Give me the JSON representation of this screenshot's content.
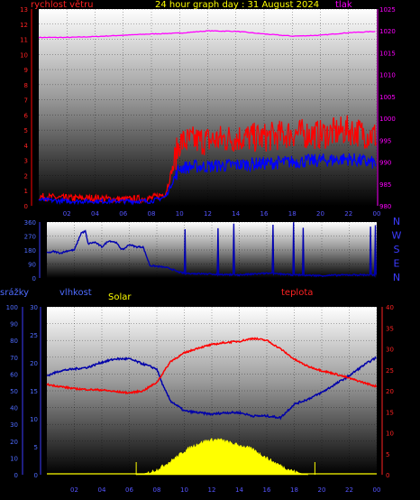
{
  "colors": {
    "background": "#000000",
    "wind_speed": "#ff0000",
    "wind_gust": "#ff0000",
    "wind_avg": "#0000ff",
    "pressure": "#ff00ff",
    "direction": "#00008b",
    "humidity": "#0000aa",
    "temperature": "#ff0000",
    "solar": "#ffff00",
    "title": "#ffff00",
    "rain_axis": "#3c3cff",
    "hum_axis": "#3c3cff",
    "dir_letters": "#3c3cff",
    "temp_axis": "#ff3333"
  },
  "chart_data": [
    {
      "type": "line",
      "title": "24 hour graph day : 31 August 2024",
      "left_axis_label": "rychlost větru",
      "right_axis_label": "tlak",
      "x_ticks": [
        "02",
        "04",
        "06",
        "08",
        "10",
        "12",
        "14",
        "16",
        "18",
        "20",
        "22",
        "00"
      ],
      "left_ticks": [
        "0",
        "1",
        "2",
        "3",
        "4",
        "5",
        "6",
        "7",
        "8",
        "9",
        "10",
        "11",
        "12",
        "13"
      ],
      "right_ticks": [
        "980",
        "985",
        "990",
        "995",
        "1000",
        "1005",
        "1010",
        "1015",
        "1020",
        "1025"
      ],
      "ylim_left": [
        0,
        13
      ],
      "ylim_right": [
        980,
        1025
      ],
      "x_range_hours": [
        0,
        24
      ],
      "series": [
        {
          "name": "tlak",
          "axis": "right",
          "x": [
            0,
            2,
            4,
            6,
            8,
            10,
            12,
            14,
            16,
            18,
            20,
            22,
            24
          ],
          "values": [
            1018.5,
            1018.5,
            1018.7,
            1019.0,
            1019.3,
            1019.5,
            1020.0,
            1019.9,
            1019.3,
            1018.8,
            1019.0,
            1019.6,
            1019.9
          ]
        },
        {
          "name": "gust",
          "axis": "left",
          "x": [
            0,
            2,
            4,
            6,
            8,
            9,
            10,
            11,
            12,
            14,
            16,
            18,
            20,
            22,
            24
          ],
          "values": [
            0.6,
            0.5,
            0.5,
            0.4,
            0.5,
            0.8,
            4.2,
            4.3,
            4.3,
            4.5,
            4.5,
            4.8,
            4.7,
            5.0,
            4.6
          ]
        },
        {
          "name": "average",
          "axis": "left",
          "x": [
            0,
            2,
            4,
            6,
            8,
            9,
            10,
            11,
            12,
            14,
            16,
            18,
            20,
            22,
            24
          ],
          "values": [
            0.4,
            0.3,
            0.3,
            0.3,
            0.3,
            0.6,
            2.5,
            2.6,
            2.6,
            2.7,
            2.8,
            2.9,
            3.0,
            3.1,
            2.8
          ]
        }
      ]
    },
    {
      "type": "line",
      "title": "",
      "right_labels": [
        "N",
        "W",
        "S",
        "E",
        "N"
      ],
      "left_ticks": [
        "0",
        "90",
        "180",
        "270",
        "360"
      ],
      "ylim": [
        0,
        360
      ],
      "x_range_hours": [
        0,
        24
      ],
      "series": [
        {
          "name": "direction",
          "x": [
            0,
            0.5,
            1,
            1.5,
            2,
            2.5,
            2.8,
            3,
            3.5,
            4,
            4.5,
            5,
            5.5,
            6,
            6.5,
            7,
            7.5,
            8,
            8.5,
            9,
            9.5,
            10,
            12,
            14,
            16,
            18,
            20,
            22,
            24
          ],
          "values": [
            160,
            170,
            160,
            175,
            180,
            290,
            300,
            220,
            230,
            200,
            240,
            230,
            180,
            215,
            200,
            200,
            80,
            75,
            70,
            60,
            40,
            30,
            25,
            20,
            30,
            20,
            15,
            20,
            20
          ]
        }
      ]
    },
    {
      "type": "line",
      "title": "",
      "label_rain": "srážky",
      "label_hum": "vlhkost",
      "label_solar": "Solar",
      "label_temp": "teplota",
      "x_ticks": [
        "02",
        "04",
        "06",
        "08",
        "10",
        "12",
        "14",
        "16",
        "18",
        "20",
        "22",
        "00"
      ],
      "rain_ticks": [
        "0",
        "10",
        "20",
        "30",
        "40",
        "50",
        "60",
        "70",
        "80",
        "90",
        "100"
      ],
      "hum_ticks": [
        "0",
        "5",
        "10",
        "15",
        "20",
        "25",
        "30"
      ],
      "temp_ticks": [
        "0",
        "5",
        "10",
        "15",
        "20",
        "25",
        "30",
        "35",
        "40"
      ],
      "ylim_temp": [
        0,
        40
      ],
      "ylim_hum": [
        0,
        30
      ],
      "x_range_hours": [
        0,
        24
      ],
      "series": [
        {
          "name": "vlhkost",
          "axis": "rain",
          "x": [
            0,
            1,
            2,
            3,
            4,
            5,
            6,
            7,
            8,
            8.5,
            9,
            10,
            11,
            12,
            13,
            14,
            15,
            16,
            17,
            18,
            19,
            20,
            21,
            22,
            23,
            24
          ],
          "values": [
            59,
            62,
            63,
            64,
            67,
            69,
            69,
            66,
            63,
            52,
            44,
            38,
            37,
            36,
            37,
            37,
            35,
            35,
            34,
            42,
            45,
            49,
            54,
            59,
            65,
            70
          ]
        },
        {
          "name": "teplota",
          "axis": "temp",
          "x": [
            0,
            1,
            2,
            3,
            4,
            5,
            6,
            7,
            8,
            8.5,
            9,
            10,
            11,
            12,
            13,
            14,
            15,
            16,
            17,
            18,
            19,
            20,
            21,
            22,
            23,
            24
          ],
          "values": [
            21.5,
            21.0,
            20.5,
            20.3,
            20.2,
            19.8,
            19.5,
            20.0,
            22.0,
            24.5,
            27.0,
            29.0,
            30.2,
            31.0,
            31.5,
            31.8,
            32.5,
            32.0,
            30.0,
            27.5,
            25.8,
            24.8,
            24.0,
            23.0,
            22.0,
            21.0
          ]
        },
        {
          "name": "Solar",
          "axis": "temp",
          "x": [
            6.5,
            7,
            7.5,
            8,
            8.5,
            9,
            9.5,
            10,
            10.5,
            11,
            11.5,
            12,
            12.5,
            13,
            13.5,
            14,
            14.5,
            15,
            15.5,
            16,
            16.5,
            17,
            17.5,
            18,
            18.5,
            19
          ],
          "values": [
            0,
            0.2,
            0.6,
            1.2,
            2.2,
            3.2,
            4.4,
            5.6,
            6.6,
            7.4,
            8.0,
            8.3,
            8.4,
            8.0,
            7.4,
            7.0,
            6.6,
            6.0,
            5.0,
            4.0,
            3.0,
            2.2,
            1.4,
            0.8,
            0.3,
            0
          ]
        }
      ],
      "markers_hours": [
        6.5,
        19.5
      ]
    }
  ]
}
